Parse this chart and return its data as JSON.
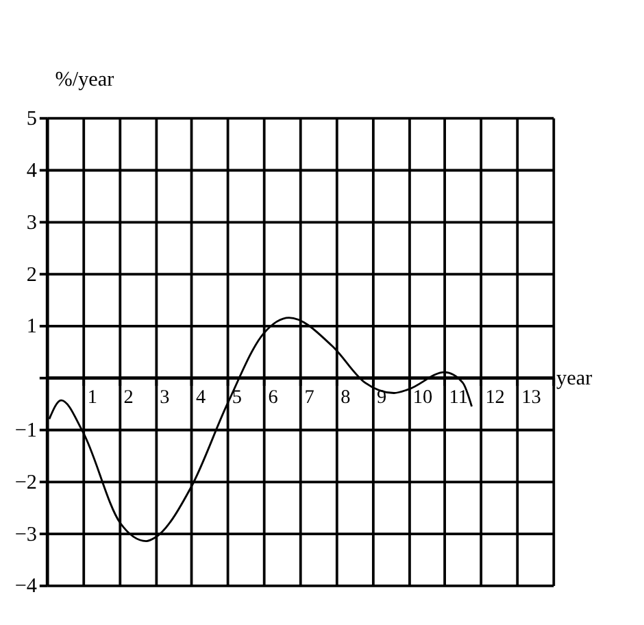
{
  "chart_data": {
    "type": "line",
    "xlabel": "year",
    "ylabel": "%/year",
    "x": [
      0.07,
      0.4,
      1.0,
      2.03,
      2.75,
      3.0,
      4.0,
      5.0,
      6.0,
      6.7,
      7.9,
      8.8,
      9.6,
      10.0,
      11.0,
      11.5,
      11.75
    ],
    "series": [
      {
        "color": "#000000",
        "values": [
          -0.8,
          -0.44,
          -1.05,
          -2.8,
          -3.15,
          -3.08,
          -2.1,
          -0.5,
          0.85,
          1.15,
          0.6,
          -0.1,
          -0.3,
          -0.23,
          0.1,
          -0.1,
          -0.56
        ]
      }
    ],
    "xlim": [
      0,
      14
    ],
    "ylim": [
      -4,
      5
    ],
    "xticks": [
      {
        "value": 0,
        "label": null
      },
      1,
      2,
      3,
      4,
      5,
      6,
      7,
      8,
      9,
      10,
      11,
      12,
      13,
      {
        "value": 14,
        "label": null
      }
    ],
    "yticks": [
      -4,
      -3,
      -2,
      -1,
      {
        "value": 0,
        "label": null
      },
      1,
      2,
      3,
      4,
      5
    ],
    "grid": true,
    "marker": "none",
    "line_style": "solid"
  }
}
